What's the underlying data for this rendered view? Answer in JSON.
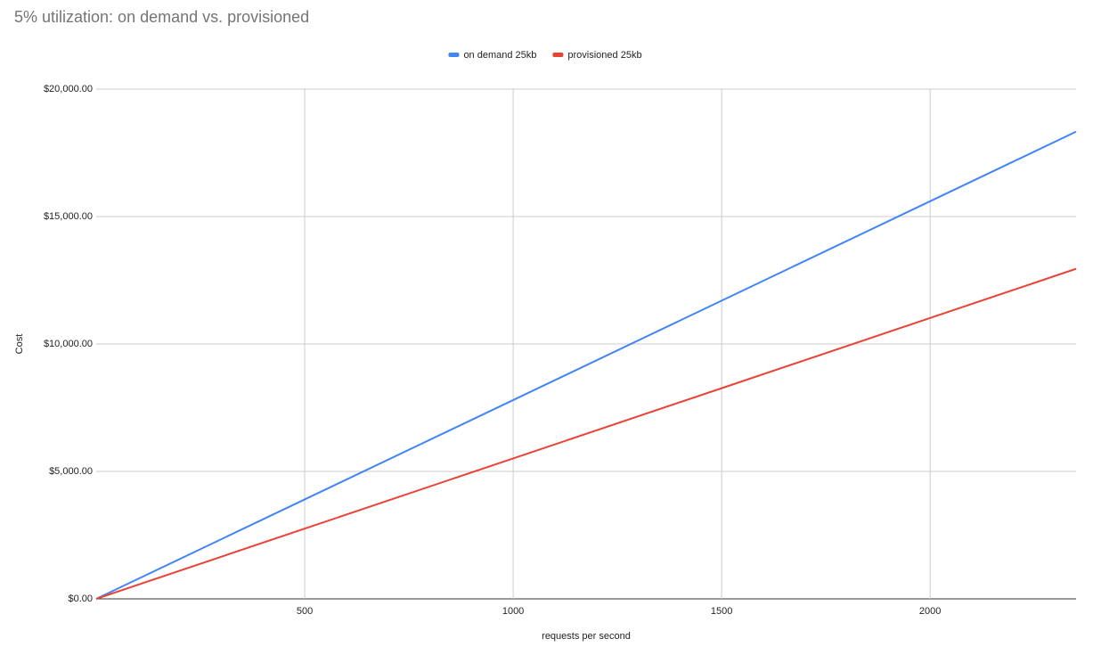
{
  "chart_data": {
    "type": "line",
    "title": "5% utilization: on demand vs. provisioned",
    "x_label": "requests per second",
    "y_label": "Cost",
    "x": [
      0,
      500,
      1000,
      1500,
      2000,
      2350
    ],
    "series": [
      {
        "name": "on demand 25kb",
        "color": "#4285f4",
        "values": [
          0,
          3900,
          7800,
          11700,
          15600,
          18330
        ]
      },
      {
        "name": "provisioned 25kb",
        "color": "#ea4335",
        "values": [
          0,
          2755,
          5510,
          8265,
          11020,
          12950
        ]
      }
    ],
    "xlim": [
      0,
      2350
    ],
    "xticks": [
      500,
      1000,
      1500,
      2000
    ],
    "ylim": [
      0,
      20000
    ],
    "yticks": [
      {
        "value": 0,
        "label": "$0.00"
      },
      {
        "value": 5000,
        "label": "$5,000.00"
      },
      {
        "value": 10000,
        "label": "$10,000.00"
      },
      {
        "value": 15000,
        "label": "$15,000.00"
      },
      {
        "value": 20000,
        "label": "$20,000.00"
      }
    ],
    "grid": true,
    "legend": "top"
  }
}
